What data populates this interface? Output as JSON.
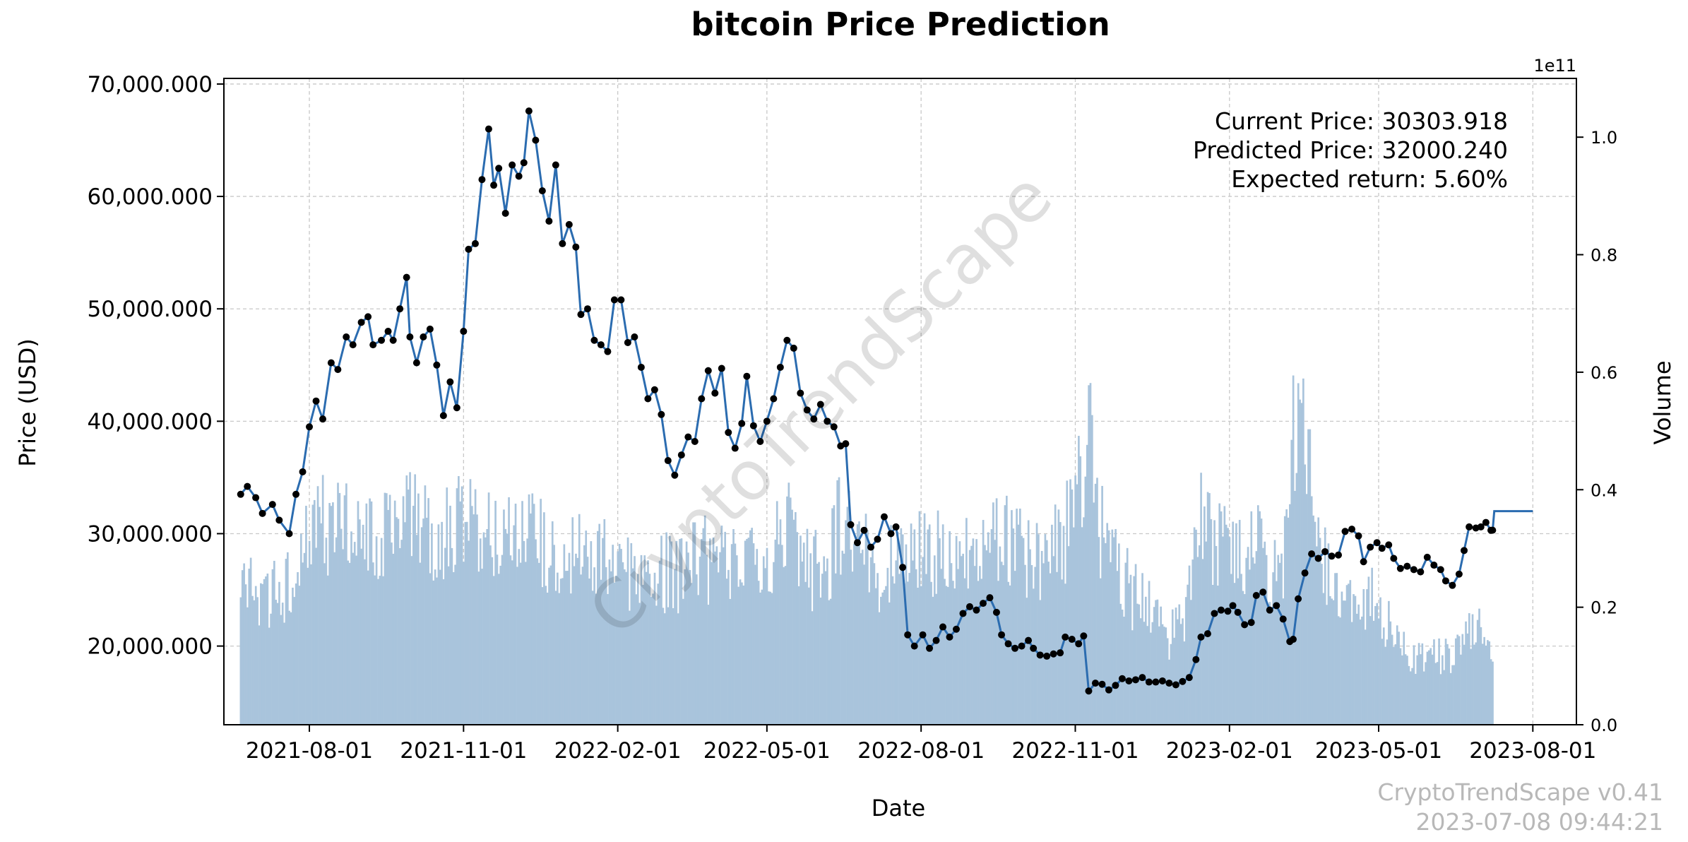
{
  "chart_data": {
    "type": "line",
    "title": "bitcoin Price Prediction",
    "xlabel": "Date",
    "ylabel": "Price (USD)",
    "y2label": "Volume",
    "y2_exponent_label": "1e11",
    "ylim": [
      13000,
      70500
    ],
    "y2lim": [
      0,
      1.1
    ],
    "xlim": [
      "2021-06-11",
      "2023-08-27"
    ],
    "x_ticks": [
      "2021-08-01",
      "2021-11-01",
      "2022-02-01",
      "2022-05-01",
      "2022-08-01",
      "2022-11-01",
      "2023-02-01",
      "2023-05-01",
      "2023-08-01"
    ],
    "y_ticks": [
      20000,
      30000,
      40000,
      50000,
      60000,
      70000
    ],
    "y_tick_labels": [
      "20,000.000",
      "30,000.000",
      "40,000.000",
      "50,000.000",
      "60,000.000",
      "70,000.000"
    ],
    "y2_ticks": [
      0.0,
      0.2,
      0.4,
      0.6,
      0.8,
      1.0
    ],
    "y2_tick_labels": [
      "0.0",
      "0.2",
      "0.4",
      "0.6",
      "0.8",
      "1.0"
    ],
    "grid": true,
    "colors": {
      "price_line": "#2b6cb0",
      "price_marker": "#000000",
      "volume_bar": "#a9c4dc",
      "grid": "#c8c8c8"
    },
    "price_series": {
      "name": "Price",
      "points": [
        [
          "2021-06-21",
          33500
        ],
        [
          "2021-06-25",
          34200
        ],
        [
          "2021-06-30",
          33200
        ],
        [
          "2021-07-04",
          31800
        ],
        [
          "2021-07-10",
          32600
        ],
        [
          "2021-07-14",
          31200
        ],
        [
          "2021-07-20",
          30000
        ],
        [
          "2021-07-24",
          33500
        ],
        [
          "2021-07-28",
          35500
        ],
        [
          "2021-08-01",
          39500
        ],
        [
          "2021-08-05",
          41800
        ],
        [
          "2021-08-09",
          40200
        ],
        [
          "2021-08-14",
          45200
        ],
        [
          "2021-08-18",
          44600
        ],
        [
          "2021-08-23",
          47500
        ],
        [
          "2021-08-27",
          46800
        ],
        [
          "2021-09-01",
          48800
        ],
        [
          "2021-09-05",
          49300
        ],
        [
          "2021-09-08",
          46800
        ],
        [
          "2021-09-13",
          47200
        ],
        [
          "2021-09-17",
          48000
        ],
        [
          "2021-09-20",
          47200
        ],
        [
          "2021-09-24",
          50000
        ],
        [
          "2021-09-28",
          52800
        ],
        [
          "2021-09-30",
          47500
        ],
        [
          "2021-10-04",
          45200
        ],
        [
          "2021-10-08",
          47500
        ],
        [
          "2021-10-12",
          48200
        ],
        [
          "2021-10-16",
          45000
        ],
        [
          "2021-10-20",
          40500
        ],
        [
          "2021-10-24",
          43500
        ],
        [
          "2021-10-28",
          41200
        ],
        [
          "2021-11-01",
          48000
        ],
        [
          "2021-11-04",
          55300
        ],
        [
          "2021-11-08",
          55800
        ],
        [
          "2021-11-12",
          61500
        ],
        [
          "2021-11-16",
          66000
        ],
        [
          "2021-11-19",
          61000
        ],
        [
          "2021-11-22",
          62500
        ],
        [
          "2021-11-26",
          58500
        ],
        [
          "2021-11-30",
          62800
        ],
        [
          "2021-12-04",
          61800
        ],
        [
          "2021-12-07",
          63000
        ],
        [
          "2021-12-10",
          67600
        ],
        [
          "2021-12-14",
          65000
        ],
        [
          "2021-12-18",
          60500
        ],
        [
          "2021-12-22",
          57800
        ],
        [
          "2021-12-26",
          62800
        ],
        [
          "2021-12-30",
          55800
        ],
        [
          "2022-01-03",
          57500
        ],
        [
          "2022-01-07",
          55500
        ],
        [
          "2022-01-10",
          49500
        ],
        [
          "2022-01-14",
          50000
        ],
        [
          "2022-01-18",
          47200
        ],
        [
          "2022-01-22",
          46800
        ],
        [
          "2022-01-26",
          46200
        ],
        [
          "2022-01-30",
          50800
        ],
        [
          "2022-02-03",
          50800
        ],
        [
          "2022-02-07",
          47000
        ],
        [
          "2022-02-11",
          47500
        ],
        [
          "2022-02-15",
          44800
        ],
        [
          "2022-02-19",
          42000
        ],
        [
          "2022-02-23",
          42800
        ],
        [
          "2022-02-27",
          40600
        ],
        [
          "2022-03-03",
          36500
        ],
        [
          "2022-03-07",
          35200
        ],
        [
          "2022-03-11",
          37000
        ],
        [
          "2022-03-15",
          38600
        ],
        [
          "2022-03-19",
          38200
        ],
        [
          "2022-03-23",
          42000
        ],
        [
          "2022-03-27",
          44500
        ],
        [
          "2022-03-31",
          42500
        ],
        [
          "2022-04-04",
          44700
        ],
        [
          "2022-04-08",
          39000
        ],
        [
          "2022-04-12",
          37600
        ],
        [
          "2022-04-16",
          39800
        ],
        [
          "2022-04-19",
          44000
        ],
        [
          "2022-04-23",
          39600
        ],
        [
          "2022-04-27",
          38200
        ],
        [
          "2022-05-01",
          40000
        ],
        [
          "2022-05-05",
          42000
        ],
        [
          "2022-05-09",
          44800
        ],
        [
          "2022-05-13",
          47200
        ],
        [
          "2022-05-17",
          46500
        ],
        [
          "2022-05-21",
          42500
        ],
        [
          "2022-05-25",
          41000
        ],
        [
          "2022-05-29",
          40200
        ],
        [
          "2022-06-02",
          41500
        ],
        [
          "2022-06-06",
          40000
        ],
        [
          "2022-06-10",
          39500
        ],
        [
          "2022-06-14",
          37800
        ],
        [
          "2022-06-17",
          38000
        ],
        [
          "2022-06-20",
          30800
        ],
        [
          "2022-06-24",
          29200
        ],
        [
          "2022-06-28",
          30300
        ],
        [
          "2022-07-02",
          28800
        ],
        [
          "2022-07-06",
          29500
        ],
        [
          "2022-07-10",
          31500
        ],
        [
          "2022-07-14",
          30000
        ],
        [
          "2022-07-17",
          30600
        ],
        [
          "2022-07-21",
          27000
        ],
        [
          "2022-07-24",
          21000
        ],
        [
          "2022-07-28",
          20000
        ],
        [
          "2022-08-02",
          21000
        ],
        [
          "2022-08-06",
          19800
        ],
        [
          "2022-08-10",
          20500
        ],
        [
          "2022-08-14",
          21700
        ],
        [
          "2022-08-18",
          20800
        ],
        [
          "2022-08-22",
          21500
        ],
        [
          "2022-08-26",
          22900
        ],
        [
          "2022-08-30",
          23500
        ],
        [
          "2022-09-03",
          23200
        ],
        [
          "2022-09-07",
          23800
        ],
        [
          "2022-09-11",
          24300
        ],
        [
          "2022-09-15",
          23000
        ],
        [
          "2022-09-18",
          21000
        ],
        [
          "2022-09-22",
          20200
        ],
        [
          "2022-09-26",
          19800
        ],
        [
          "2022-09-30",
          20000
        ],
        [
          "2022-10-04",
          20500
        ],
        [
          "2022-10-07",
          19800
        ],
        [
          "2022-10-11",
          19200
        ],
        [
          "2022-10-15",
          19100
        ],
        [
          "2022-10-19",
          19300
        ],
        [
          "2022-10-23",
          19400
        ],
        [
          "2022-10-26",
          20800
        ],
        [
          "2022-10-30",
          20600
        ],
        [
          "2022-11-03",
          20200
        ],
        [
          "2022-11-06",
          20900
        ],
        [
          "2022-11-09",
          16000
        ],
        [
          "2022-11-13",
          16700
        ],
        [
          "2022-11-17",
          16600
        ],
        [
          "2022-11-21",
          16100
        ],
        [
          "2022-11-25",
          16500
        ],
        [
          "2022-11-29",
          17100
        ],
        [
          "2022-12-03",
          16900
        ],
        [
          "2022-12-07",
          17000
        ],
        [
          "2022-12-11",
          17200
        ],
        [
          "2022-12-15",
          16800
        ],
        [
          "2022-12-19",
          16800
        ],
        [
          "2022-12-23",
          16900
        ],
        [
          "2022-12-27",
          16700
        ],
        [
          "2022-12-31",
          16550
        ],
        [
          "2023-01-04",
          16850
        ],
        [
          "2023-01-08",
          17200
        ],
        [
          "2023-01-12",
          18800
        ],
        [
          "2023-01-15",
          20800
        ],
        [
          "2023-01-19",
          21100
        ],
        [
          "2023-01-23",
          22900
        ],
        [
          "2023-01-27",
          23200
        ],
        [
          "2023-01-31",
          23100
        ],
        [
          "2023-02-03",
          23600
        ],
        [
          "2023-02-06",
          23000
        ],
        [
          "2023-02-10",
          21900
        ],
        [
          "2023-02-14",
          22100
        ],
        [
          "2023-02-17",
          24500
        ],
        [
          "2023-02-21",
          24800
        ],
        [
          "2023-02-25",
          23200
        ],
        [
          "2023-03-01",
          23600
        ],
        [
          "2023-03-05",
          22400
        ],
        [
          "2023-03-09",
          20400
        ],
        [
          "2023-03-11",
          20600
        ],
        [
          "2023-03-14",
          24200
        ],
        [
          "2023-03-18",
          26500
        ],
        [
          "2023-03-22",
          28200
        ],
        [
          "2023-03-26",
          27800
        ],
        [
          "2023-03-30",
          28400
        ],
        [
          "2023-04-03",
          28000
        ],
        [
          "2023-04-07",
          28100
        ],
        [
          "2023-04-11",
          30200
        ],
        [
          "2023-04-15",
          30400
        ],
        [
          "2023-04-19",
          29800
        ],
        [
          "2023-04-22",
          27500
        ],
        [
          "2023-04-26",
          28800
        ],
        [
          "2023-04-30",
          29200
        ],
        [
          "2023-05-03",
          28700
        ],
        [
          "2023-05-07",
          29000
        ],
        [
          "2023-05-10",
          27800
        ],
        [
          "2023-05-14",
          26900
        ],
        [
          "2023-05-18",
          27100
        ],
        [
          "2023-05-22",
          26800
        ],
        [
          "2023-05-26",
          26600
        ],
        [
          "2023-05-30",
          27900
        ],
        [
          "2023-06-03",
          27200
        ],
        [
          "2023-06-07",
          26800
        ],
        [
          "2023-06-10",
          25800
        ],
        [
          "2023-06-14",
          25400
        ],
        [
          "2023-06-18",
          26400
        ],
        [
          "2023-06-21",
          28500
        ],
        [
          "2023-06-24",
          30600
        ],
        [
          "2023-06-28",
          30500
        ],
        [
          "2023-07-01",
          30600
        ],
        [
          "2023-07-04",
          31000
        ],
        [
          "2023-07-07",
          30300
        ],
        [
          "2023-07-08",
          30303.918
        ]
      ]
    },
    "prediction_series": {
      "name": "Predicted",
      "points": [
        [
          "2023-07-08",
          30303.918
        ],
        [
          "2023-07-09",
          32000.24
        ],
        [
          "2023-08-01",
          32000.24
        ]
      ]
    },
    "volume_series": {
      "name": "Volume",
      "points": [
        [
          "2021-06-21",
          0.25
        ],
        [
          "2021-07-01",
          0.23
        ],
        [
          "2021-07-10",
          0.22
        ],
        [
          "2021-07-20",
          0.24
        ],
        [
          "2021-07-28",
          0.29
        ],
        [
          "2021-08-05",
          0.35
        ],
        [
          "2021-08-15",
          0.34
        ],
        [
          "2021-08-25",
          0.32
        ],
        [
          "2021-09-05",
          0.33
        ],
        [
          "2021-09-15",
          0.31
        ],
        [
          "2021-09-25",
          0.36
        ],
        [
          "2021-10-05",
          0.33
        ],
        [
          "2021-10-15",
          0.31
        ],
        [
          "2021-10-25",
          0.33
        ],
        [
          "2021-11-05",
          0.35
        ],
        [
          "2021-11-15",
          0.34
        ],
        [
          "2021-11-25",
          0.31
        ],
        [
          "2021-12-05",
          0.36
        ],
        [
          "2021-12-15",
          0.31
        ],
        [
          "2021-12-25",
          0.29
        ],
        [
          "2022-01-05",
          0.28
        ],
        [
          "2022-01-15",
          0.29
        ],
        [
          "2022-01-25",
          0.3
        ],
        [
          "2022-02-05",
          0.27
        ],
        [
          "2022-02-15",
          0.26
        ],
        [
          "2022-02-25",
          0.27
        ],
        [
          "2022-03-05",
          0.25
        ],
        [
          "2022-03-15",
          0.27
        ],
        [
          "2022-03-25",
          0.28
        ],
        [
          "2022-04-05",
          0.27
        ],
        [
          "2022-04-15",
          0.26
        ],
        [
          "2022-04-25",
          0.28
        ],
        [
          "2022-05-05",
          0.3
        ],
        [
          "2022-05-15",
          0.33
        ],
        [
          "2022-05-25",
          0.27
        ],
        [
          "2022-06-05",
          0.25
        ],
        [
          "2022-06-15",
          0.36
        ],
        [
          "2022-06-25",
          0.31
        ],
        [
          "2022-07-05",
          0.25
        ],
        [
          "2022-07-15",
          0.27
        ],
        [
          "2022-07-25",
          0.29
        ],
        [
          "2022-08-05",
          0.3
        ],
        [
          "2022-08-15",
          0.28
        ],
        [
          "2022-08-25",
          0.3
        ],
        [
          "2022-09-05",
          0.3
        ],
        [
          "2022-09-15",
          0.33
        ],
        [
          "2022-09-25",
          0.3
        ],
        [
          "2022-10-05",
          0.28
        ],
        [
          "2022-10-15",
          0.27
        ],
        [
          "2022-10-25",
          0.32
        ],
        [
          "2022-11-05",
          0.44
        ],
        [
          "2022-11-10",
          0.62
        ],
        [
          "2022-11-15",
          0.34
        ],
        [
          "2022-11-25",
          0.28
        ],
        [
          "2022-12-05",
          0.22
        ],
        [
          "2022-12-15",
          0.2
        ],
        [
          "2022-12-25",
          0.14
        ],
        [
          "2023-01-05",
          0.18
        ],
        [
          "2023-01-15",
          0.36
        ],
        [
          "2023-01-25",
          0.3
        ],
        [
          "2023-02-05",
          0.28
        ],
        [
          "2023-02-15",
          0.33
        ],
        [
          "2023-02-25",
          0.24
        ],
        [
          "2023-03-05",
          0.27
        ],
        [
          "2023-03-12",
          0.52
        ],
        [
          "2023-03-18",
          0.48
        ],
        [
          "2023-03-25",
          0.3
        ],
        [
          "2023-04-05",
          0.22
        ],
        [
          "2023-04-15",
          0.23
        ],
        [
          "2023-04-25",
          0.22
        ],
        [
          "2023-05-05",
          0.18
        ],
        [
          "2023-05-15",
          0.13
        ],
        [
          "2023-05-25",
          0.11
        ],
        [
          "2023-06-05",
          0.12
        ],
        [
          "2023-06-15",
          0.11
        ],
        [
          "2023-06-25",
          0.17
        ],
        [
          "2023-07-05",
          0.15
        ],
        [
          "2023-07-08",
          0.1
        ]
      ]
    },
    "annotations": {
      "current_price": "Current Price: 30303.918",
      "predicted_price": "Predicted Price: 32000.240",
      "expected_return": "Expected return: 5.60%"
    },
    "watermark": "CryptoTrendScape",
    "footer_version": "CryptoTrendScape v0.41",
    "footer_timestamp": "2023-07-08 09:44:21"
  }
}
